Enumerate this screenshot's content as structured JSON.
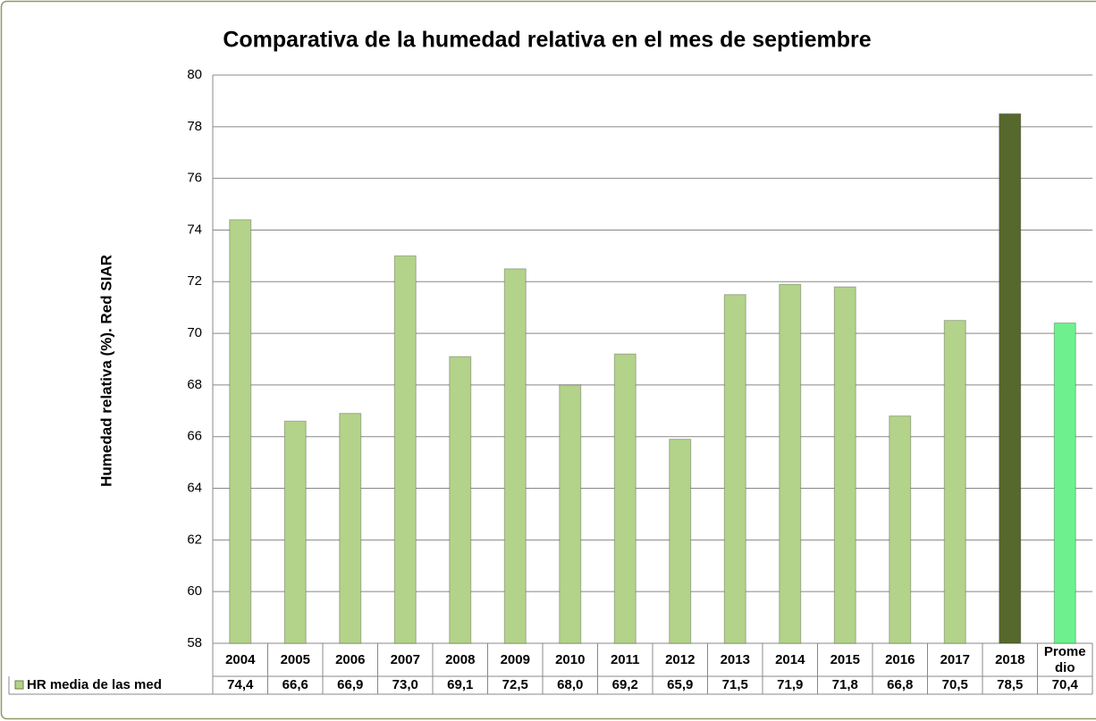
{
  "chart_data": {
    "type": "bar",
    "title": "Comparativa de la humedad relativa en el mes de  septiembre",
    "y_label": "Humedad relativa (%). Red SIAR",
    "categories": [
      "2004",
      "2005",
      "2006",
      "2007",
      "2008",
      "2009",
      "2010",
      "2011",
      "2012",
      "2013",
      "2014",
      "2015",
      "2016",
      "2017",
      "2018",
      "Promedio"
    ],
    "series": [
      {
        "name": "HR media de las med",
        "color": "#b3d28a",
        "colors": [
          "#b3d28a",
          "#b3d28a",
          "#b3d28a",
          "#b3d28a",
          "#b3d28a",
          "#b3d28a",
          "#b3d28a",
          "#b3d28a",
          "#b3d28a",
          "#b3d28a",
          "#b3d28a",
          "#b3d28a",
          "#b3d28a",
          "#b3d28a",
          "#56682c",
          "#6ef08e"
        ],
        "values": [
          74.4,
          66.6,
          66.9,
          73.0,
          69.1,
          72.5,
          68.0,
          69.2,
          65.9,
          71.5,
          71.9,
          71.8,
          66.8,
          70.5,
          78.5,
          70.4
        ],
        "value_labels": [
          "74,4",
          "66,6",
          "66,9",
          "73,0",
          "69,1",
          "72,5",
          "68,0",
          "69,2",
          "65,9",
          "71,5",
          "71,9",
          "71,8",
          "66,8",
          "70,5",
          "78,5",
          "70,4"
        ]
      }
    ],
    "ylim": [
      58,
      80
    ],
    "yticks": [
      58,
      60,
      62,
      64,
      66,
      68,
      70,
      72,
      74,
      76,
      78,
      80
    ],
    "grid": true
  }
}
